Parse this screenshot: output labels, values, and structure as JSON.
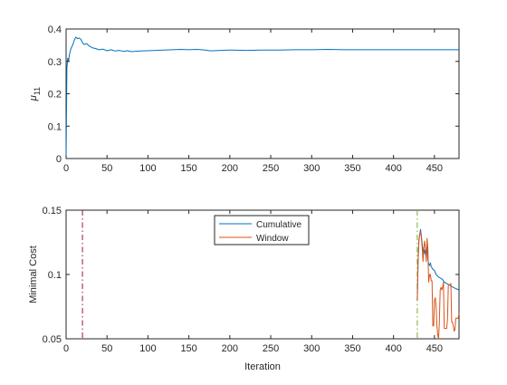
{
  "chart_data": [
    {
      "type": "line",
      "ylabel": "μ",
      "ylabel_sub": "11",
      "xlim": [
        0,
        480
      ],
      "ylim": [
        0,
        0.4
      ],
      "xticks": [
        "0",
        "50",
        "100",
        "150",
        "200",
        "250",
        "300",
        "350",
        "400",
        "450"
      ],
      "yticks": [
        "0",
        "0.1",
        "0.2",
        "0.3",
        "0.4"
      ],
      "grid": false,
      "series": [
        {
          "color": "#0072BD",
          "x": [
            0,
            1,
            2,
            3,
            4,
            5,
            6,
            8,
            10,
            12,
            14,
            16,
            18,
            20,
            22,
            25,
            28,
            32,
            36,
            40,
            45,
            50,
            55,
            60,
            65,
            70,
            75,
            80,
            90,
            100,
            110,
            120,
            130,
            140,
            150,
            160,
            170,
            175,
            180,
            190,
            200,
            220,
            240,
            260,
            280,
            300,
            320,
            340,
            360,
            380,
            400,
            420,
            440,
            460,
            480
          ],
          "y": [
            0,
            0.28,
            0.31,
            0.3,
            0.32,
            0.33,
            0.34,
            0.35,
            0.365,
            0.375,
            0.37,
            0.372,
            0.368,
            0.358,
            0.352,
            0.355,
            0.348,
            0.342,
            0.34,
            0.336,
            0.338,
            0.333,
            0.336,
            0.332,
            0.334,
            0.331,
            0.333,
            0.33,
            0.332,
            0.333,
            0.334,
            0.335,
            0.336,
            0.337,
            0.336,
            0.337,
            0.335,
            0.333,
            0.333,
            0.334,
            0.335,
            0.334,
            0.335,
            0.335,
            0.336,
            0.336,
            0.337,
            0.336,
            0.336,
            0.336,
            0.336,
            0.336,
            0.336,
            0.336,
            0.336
          ]
        }
      ]
    },
    {
      "type": "line",
      "xlabel": "Iteration",
      "ylabel": "Minimal Cost",
      "xlim": [
        0,
        480
      ],
      "ylim": [
        0.05,
        0.15
      ],
      "xticks": [
        "0",
        "50",
        "100",
        "150",
        "200",
        "250",
        "300",
        "350",
        "400",
        "450"
      ],
      "yticks": [
        "0.05",
        "0.1",
        "0.15"
      ],
      "grid": false,
      "legend_position": "top-center",
      "series": [
        {
          "name": "Cumulative",
          "color": "#0072BD",
          "x": [
            429,
            430,
            431,
            432,
            433,
            434,
            435,
            436,
            437,
            438,
            439,
            440,
            441,
            442,
            443,
            444,
            445,
            446,
            447,
            448,
            450,
            452,
            455,
            458,
            460,
            462,
            465,
            468,
            470,
            473,
            476,
            480
          ],
          "y": [
            0.08,
            0.11,
            0.126,
            0.131,
            0.135,
            0.13,
            0.124,
            0.119,
            0.116,
            0.119,
            0.116,
            0.113,
            0.122,
            0.112,
            0.108,
            0.107,
            0.109,
            0.106,
            0.105,
            0.104,
            0.103,
            0.1,
            0.098,
            0.097,
            0.096,
            0.094,
            0.093,
            0.092,
            0.091,
            0.09,
            0.089,
            0.088
          ]
        },
        {
          "name": "Window",
          "color": "#D95319",
          "x": [
            429,
            430,
            431,
            432,
            433,
            434,
            435,
            436,
            437,
            438,
            439,
            440,
            441,
            442,
            443,
            444,
            445,
            446,
            447,
            448,
            449,
            450,
            451,
            452,
            453,
            454,
            455,
            456,
            457,
            458,
            459,
            460,
            461,
            462,
            463,
            464,
            465,
            466,
            467,
            468,
            469,
            470,
            471,
            472,
            473,
            474,
            475,
            476,
            477,
            478,
            479,
            480
          ],
          "y": [
            0.08,
            0.11,
            0.127,
            0.131,
            0.133,
            0.129,
            0.121,
            0.11,
            0.12,
            0.126,
            0.121,
            0.11,
            0.128,
            0.12,
            0.094,
            0.1,
            0.1,
            0.095,
            0.095,
            0.06,
            0.06,
            0.08,
            0.082,
            0.075,
            0.06,
            0.053,
            0.05,
            0.063,
            0.088,
            0.09,
            0.088,
            0.09,
            0.094,
            0.058,
            0.058,
            0.058,
            0.058,
            0.065,
            0.092,
            0.092,
            0.092,
            0.093,
            0.063,
            0.063,
            0.06,
            0.056,
            0.057,
            0.066,
            0.066,
            0.066,
            0.066,
            0.07
          ]
        }
      ],
      "vlines": [
        {
          "x": 20,
          "color": "#A2142F",
          "style": "dashdot"
        },
        {
          "x": 429,
          "color": "#77AC30",
          "style": "dashdot"
        }
      ]
    }
  ]
}
